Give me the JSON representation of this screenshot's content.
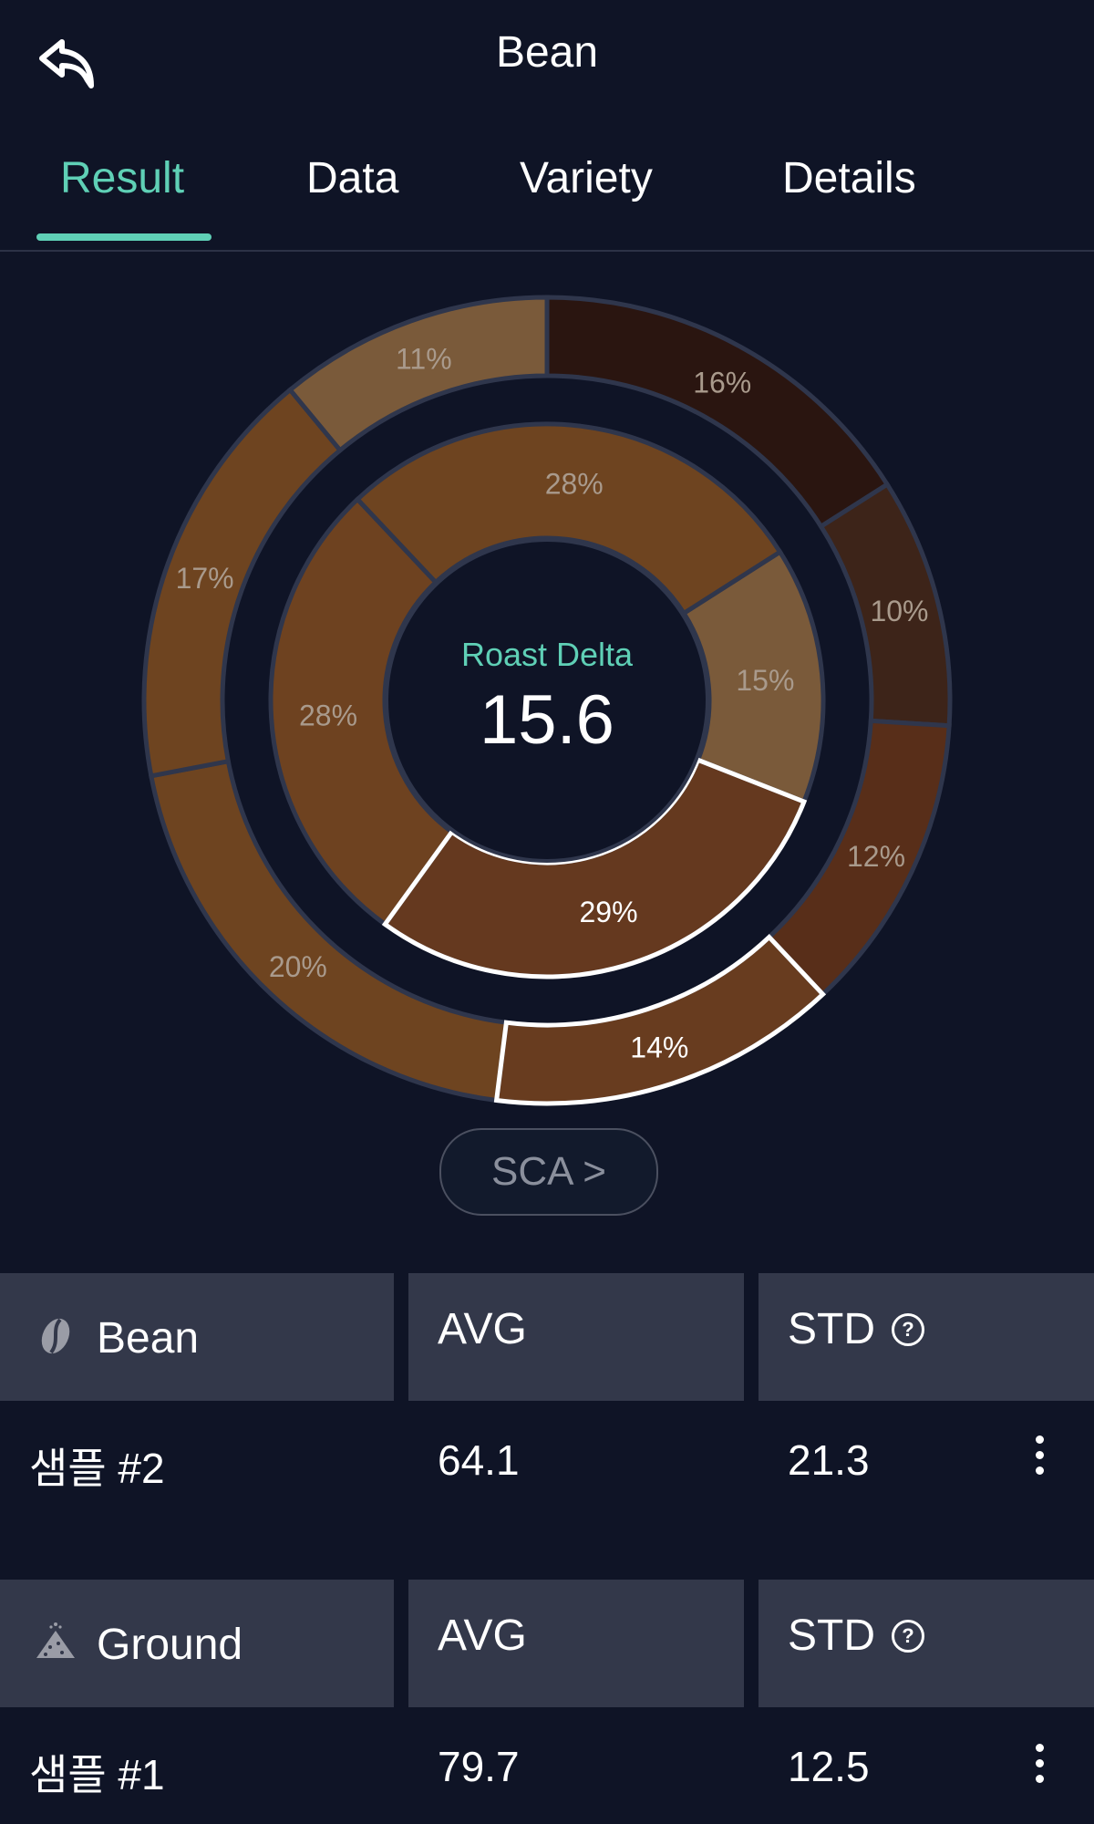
{
  "header": {
    "title": "Bean",
    "back_icon": "back-arrow-icon"
  },
  "tabs": [
    {
      "label": "Result",
      "active": true
    },
    {
      "label": "Data",
      "active": false
    },
    {
      "label": "Variety",
      "active": false
    },
    {
      "label": "Details",
      "active": false
    }
  ],
  "center": {
    "label": "Roast Delta",
    "value": "15.6"
  },
  "sca_button": {
    "label": "SCA >"
  },
  "chart_data": {
    "type": "pie",
    "inner_ring": {
      "slices": [
        {
          "label": "15%",
          "value": 15,
          "color": "#7a5a3a"
        },
        {
          "label": "29%",
          "value": 29,
          "color": "#65391f",
          "highlighted": true
        },
        {
          "label": "28%",
          "value": 28,
          "color": "#6e4220"
        },
        {
          "label": "28%",
          "value": 28,
          "color": "#6e4420"
        }
      ]
    },
    "outer_ring": {
      "slices": [
        {
          "label": "16%",
          "value": 16,
          "color": "#2a1510"
        },
        {
          "label": "10%",
          "value": 10,
          "color": "#3d2419"
        },
        {
          "label": "12%",
          "value": 12,
          "color": "#582e19"
        },
        {
          "label": "14%",
          "value": 14,
          "color": "#683c1f",
          "highlighted": true
        },
        {
          "label": "20%",
          "value": 20,
          "color": "#6e4420"
        },
        {
          "label": "17%",
          "value": 17,
          "color": "#6e4420"
        },
        {
          "label": "11%",
          "value": 11,
          "color": "#7a5a3a"
        }
      ]
    }
  },
  "results": [
    {
      "type_label": "Bean",
      "type_icon": "coffee-bean-icon",
      "avg_header": "AVG",
      "std_header": "STD",
      "help_glyph": "?",
      "sample": "샘플 #2",
      "avg": "64.1",
      "std": "21.3"
    },
    {
      "type_label": "Ground",
      "type_icon": "ground-coffee-icon",
      "avg_header": "AVG",
      "std_header": "STD",
      "help_glyph": "?",
      "sample": "샘플 #1",
      "avg": "79.7",
      "std": "12.5"
    }
  ]
}
